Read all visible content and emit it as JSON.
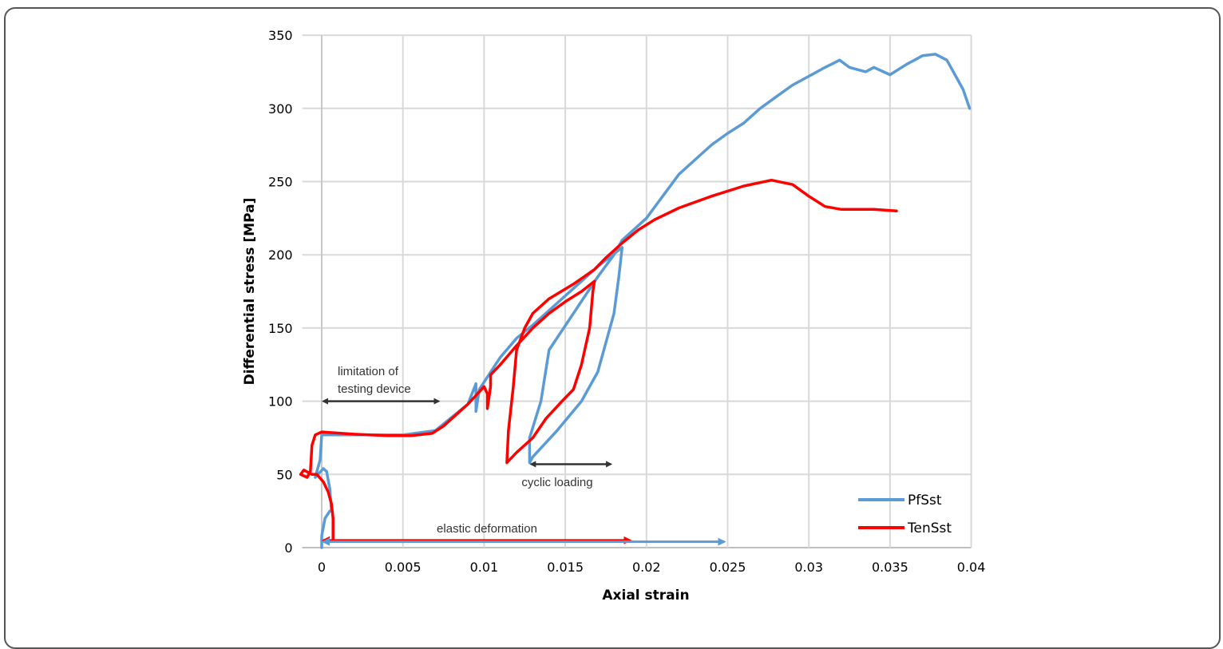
{
  "chart_data": {
    "type": "line",
    "title": "",
    "xlabel": "Axial strain",
    "ylabel": "Differential stress [MPa]",
    "xlim": [
      -0.0012,
      0.04
    ],
    "ylim": [
      0,
      350
    ],
    "xticks": [
      0,
      0.005,
      0.01,
      0.015,
      0.02,
      0.025,
      0.03,
      0.035,
      0.04
    ],
    "xtick_labels": [
      "0",
      "0.005",
      "0.01",
      "0.015",
      "0.02",
      "0.025",
      "0.03",
      "0.035",
      "0.04"
    ],
    "yticks": [
      0,
      50,
      100,
      150,
      200,
      250,
      300,
      350
    ],
    "ytick_labels": [
      "0",
      "50",
      "100",
      "150",
      "200",
      "250",
      "300",
      "350"
    ],
    "grid": true,
    "legend_position": "bottom-right",
    "series": [
      {
        "name": "PfSst",
        "color": "#5b9bd5",
        "x": [
          0,
          0,
          0.0002,
          0.0005,
          0.0006,
          0.0005,
          0.0003,
          0.0001,
          -0.0004,
          -0.0001,
          0,
          0.005,
          0.007,
          0.009,
          0.0095,
          0.0095,
          0.0097,
          0.011,
          0.012,
          0.013,
          0.015,
          0.017,
          0.0185,
          0.0183,
          0.018,
          0.0175,
          0.017,
          0.016,
          0.0145,
          0.013,
          0.0128,
          0.0128,
          0.0135,
          0.014,
          0.0155,
          0.017,
          0.018,
          0.0185,
          0.019,
          0.02,
          0.021,
          0.022,
          0.023,
          0.024,
          0.025,
          0.026,
          0.027,
          0.028,
          0.029,
          0.03,
          0.031,
          0.0319,
          0.0325,
          0.0335,
          0.034,
          0.035,
          0.036,
          0.037,
          0.0378,
          0.0385,
          0.0395,
          0.0399
        ],
        "y": [
          0,
          8,
          20,
          25,
          25,
          40,
          52,
          54,
          48,
          60,
          77,
          77,
          80,
          98,
          112,
          93,
          108,
          130,
          143,
          152,
          172,
          192,
          205,
          185,
          160,
          140,
          120,
          100,
          80,
          62,
          58,
          75,
          100,
          135,
          160,
          185,
          200,
          210,
          215,
          225,
          240,
          255,
          265,
          275,
          283,
          290,
          300,
          308,
          316,
          322,
          328,
          333,
          328,
          325,
          328,
          323,
          330,
          336,
          337,
          333,
          313,
          300
        ]
      },
      {
        "name": "TenSst",
        "color": "#ff0000",
        "x": [
          0.0007,
          0.0007,
          0.0006,
          0.0004,
          0.0001,
          -0.0003,
          -0.0006,
          -0.0011,
          -0.0013,
          -0.0009,
          -0.0007,
          -0.0006,
          -0.0004,
          0,
          0.002,
          0.004,
          0.0055,
          0.0068,
          0.0075,
          0.009,
          0.01,
          0.0102,
          0.0102,
          0.0104,
          0.0104,
          0.011,
          0.012,
          0.013,
          0.014,
          0.015,
          0.016,
          0.0168,
          0.0167,
          0.0165,
          0.016,
          0.0155,
          0.0148,
          0.0138,
          0.013,
          0.012,
          0.0114,
          0.0115,
          0.0118,
          0.012,
          0.0125,
          0.013,
          0.014,
          0.0155,
          0.0168,
          0.0175,
          0.0185,
          0.0195,
          0.0205,
          0.022,
          0.024,
          0.026,
          0.0277,
          0.029,
          0.03,
          0.031,
          0.032,
          0.034,
          0.0354
        ],
        "y": [
          5,
          20,
          30,
          38,
          45,
          50,
          50,
          53,
          50,
          48,
          52,
          70,
          77,
          79,
          77.5,
          76.5,
          76.5,
          78,
          83,
          98,
          110,
          105,
          95,
          110,
          118,
          125,
          138,
          150,
          160,
          168,
          175,
          182,
          175,
          150,
          125,
          108,
          100,
          88,
          75,
          65,
          58,
          80,
          110,
          135,
          150,
          160,
          170,
          180,
          190,
          198,
          208,
          217,
          224,
          232,
          240,
          247,
          251,
          248,
          240,
          233,
          231,
          231,
          230
        ]
      }
    ],
    "annotations": [
      {
        "text": "limitation of testing device",
        "lines": [
          "limitation of",
          "testing device"
        ],
        "arrow_from": [
          0,
          100
        ],
        "arrow_to": [
          0.0072,
          100
        ],
        "color": "#333333"
      },
      {
        "text": "cyclic loading",
        "arrow_from": [
          0.0128,
          57
        ],
        "arrow_to": [
          0.0178,
          57
        ],
        "color": "#333333"
      },
      {
        "text": "elastic deformation",
        "arrow_from": [
          0,
          5
        ],
        "arrow_to": [
          0.019,
          5
        ],
        "color": "#ff0000"
      },
      {
        "text": "",
        "arrow_from": [
          0,
          4
        ],
        "arrow_to": [
          0.0248,
          4
        ],
        "color": "#5b9bd5"
      }
    ]
  }
}
